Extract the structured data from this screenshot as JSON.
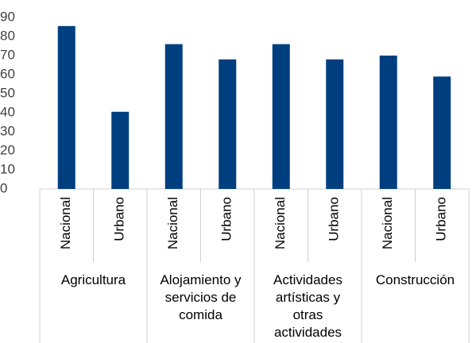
{
  "chart_data": {
    "type": "bar",
    "groups": [
      "Agricultura",
      "Alojamiento y servicios de comida",
      "Actividades artísticas y otras actividades",
      "Construcción"
    ],
    "categories": [
      "Nacional",
      "Urbano",
      "Nacional",
      "Urbano",
      "Nacional",
      "Urbano",
      "Nacional",
      "Urbano"
    ],
    "values": [
      85.5,
      40.5,
      76,
      68,
      76,
      68,
      70,
      59
    ],
    "color": "#003f7f",
    "ylim": [
      0,
      90
    ],
    "yticks": [
      0,
      10,
      20,
      30,
      40,
      50,
      60,
      70,
      80,
      90
    ],
    "grid": false
  }
}
